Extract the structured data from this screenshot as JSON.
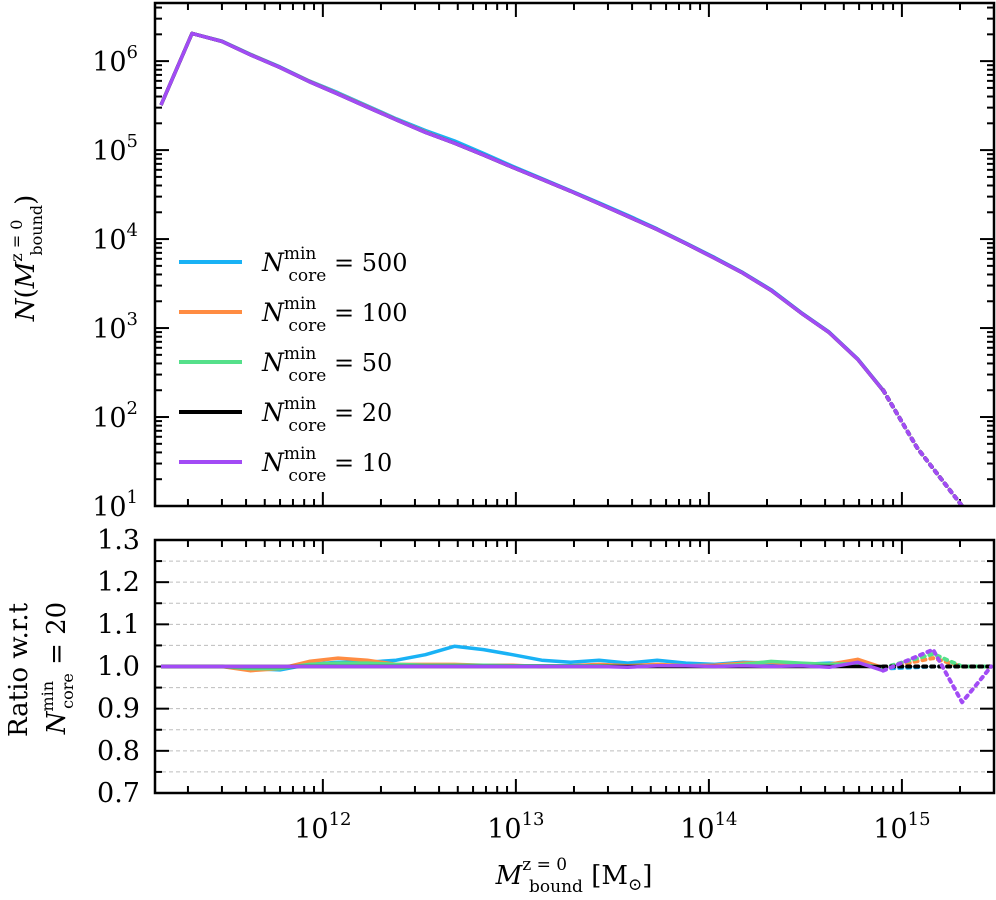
{
  "chart_data": [
    {
      "type": "line",
      "panel": "top",
      "xscale": "log",
      "yscale": "log",
      "xlim": [
        135000000000.0,
        3000000000000000.0
      ],
      "ylim": [
        10,
        4500000
      ],
      "ylabel": "N(M_bound^z=0)",
      "ytick_values": [
        10,
        100,
        1000,
        10000,
        100000,
        1000000
      ],
      "ytick_labels": [
        {
          "base": "10",
          "exp": "1"
        },
        {
          "base": "10",
          "exp": "2"
        },
        {
          "base": "10",
          "exp": "3"
        },
        {
          "base": "10",
          "exp": "4"
        },
        {
          "base": "10",
          "exp": "5"
        },
        {
          "base": "10",
          "exp": "6"
        }
      ],
      "legend_loc": "lower-left",
      "legend": [
        {
          "name": "N",
          "sup": "min",
          "sub": "core",
          "value": "= 500",
          "color": "#19b2f5"
        },
        {
          "name": "N",
          "sup": "min",
          "sub": "core",
          "value": "= 100",
          "color": "#ff8c42"
        },
        {
          "name": "N",
          "sup": "min",
          "sub": "core",
          "value": "= 50",
          "color": "#55e08a"
        },
        {
          "name": "N",
          "sup": "min",
          "sub": "core",
          "value": "= 20",
          "color": "#000000"
        },
        {
          "name": "N",
          "sup": "min",
          "sub": "core",
          "value": "= 10",
          "color": "#a24bf5"
        }
      ],
      "x": [
        145000000000.0,
        210000000000.0,
        300000000000.0,
        420000000000.0,
        600000000000.0,
        850000000000.0,
        1200000000000.0,
        1700000000000.0,
        2400000000000.0,
        3400000000000.0,
        4800000000000.0,
        6800000000000.0,
        9600000000000.0,
        13600000000000.0,
        19200000000000.0,
        27000000000000.0,
        38000000000000.0,
        54000000000000.0,
        76000000000000.0,
        107000000000000.0,
        150000000000000.0,
        210000000000000.0,
        300000000000000.0,
        420000000000000.0,
        590000000000000.0,
        800000000000000.0
      ],
      "series_solid_points": 26,
      "dotted_x": [
        800000000000000.0,
        1200000000000000.0,
        2050000000000000.0
      ],
      "dotted_y": [
        200,
        45,
        10
      ],
      "series": [
        {
          "name": "500",
          "color": "#19b2f5",
          "values": [
            320000,
            2050000,
            1680000,
            1200000,
            860000,
            600000,
            440000,
            315000,
            225000,
            166000,
            127000,
            92000,
            66000,
            48000,
            35000,
            25500,
            18500,
            13000,
            9000,
            6200,
            4200,
            2700,
            1500,
            900,
            450,
            200
          ]
        },
        {
          "name": "100",
          "color": "#ff8c42",
          "values": [
            320000,
            2050000,
            1670000,
            1190000,
            850000,
            595000,
            432000,
            308000,
            221000,
            160000,
            120000,
            88000,
            64000,
            47000,
            34500,
            25000,
            18000,
            12800,
            8900,
            6100,
            4150,
            2650,
            1480,
            890,
            445,
            198
          ]
        },
        {
          "name": "50",
          "color": "#55e08a",
          "values": [
            320000,
            2050000,
            1665000,
            1185000,
            850000,
            590000,
            428000,
            305000,
            220000,
            159000,
            120000,
            88000,
            64000,
            47000,
            34500,
            25000,
            18000,
            12800,
            8900,
            6100,
            4150,
            2650,
            1480,
            890,
            445,
            198
          ]
        },
        {
          "name": "20",
          "color": "#000000",
          "values": [
            320000,
            2050000,
            1665000,
            1180000,
            848000,
            588000,
            426000,
            304000,
            219000,
            158000,
            120000,
            88000,
            64000,
            47000,
            34500,
            25000,
            18000,
            12800,
            8900,
            6100,
            4150,
            2650,
            1480,
            890,
            445,
            198
          ]
        },
        {
          "name": "10",
          "color": "#a24bf5",
          "values": [
            320000,
            2050000,
            1665000,
            1180000,
            848000,
            588000,
            426000,
            304000,
            219000,
            158000,
            120000,
            88000,
            64000,
            47000,
            34500,
            25000,
            18000,
            12800,
            8900,
            6100,
            4150,
            2650,
            1480,
            890,
            445,
            198
          ]
        }
      ]
    },
    {
      "type": "line",
      "panel": "bottom",
      "xscale": "log",
      "xlim": [
        135000000000.0,
        3000000000000000.0
      ],
      "ylim": [
        0.7,
        1.3
      ],
      "grid": "horizontal dashed",
      "ylabel_line1": "Ratio w.r.t",
      "ylabel_line2": {
        "name": "N",
        "sup": "min",
        "sub": "core",
        "value": "= 20"
      },
      "ytick_values": [
        0.7,
        0.8,
        0.9,
        1.0,
        1.1,
        1.2,
        1.3
      ],
      "ytick_labels": [
        "0.7",
        "0.8",
        "0.9",
        "1.0",
        "1.1",
        "1.2",
        "1.3"
      ],
      "xtick_values": [
        1000000000000.0,
        10000000000000.0,
        100000000000000.0,
        1000000000000000.0
      ],
      "xtick_labels": [
        {
          "base": "10",
          "exp": "12"
        },
        {
          "base": "10",
          "exp": "13"
        },
        {
          "base": "10",
          "exp": "14"
        },
        {
          "base": "10",
          "exp": "15"
        }
      ],
      "xlabel": {
        "name": "M",
        "sup": "z = 0",
        "sub": "bound",
        "unit": "[M",
        "unit_sub": "⊙",
        "unit_close": "]"
      },
      "x": [
        145000000000.0,
        210000000000.0,
        300000000000.0,
        420000000000.0,
        600000000000.0,
        850000000000.0,
        1200000000000.0,
        1700000000000.0,
        2400000000000.0,
        3400000000000.0,
        4800000000000.0,
        6800000000000.0,
        9600000000000.0,
        13600000000000.0,
        19200000000000.0,
        27000000000000.0,
        38000000000000.0,
        54000000000000.0,
        76000000000000.0,
        107000000000000.0,
        150000000000000.0,
        210000000000000.0,
        300000000000000.0,
        420000000000000.0,
        590000000000000.0,
        800000000000000.0
      ],
      "dotted_x": [
        800000000000000.0,
        1450000000000000.0,
        2050000000000000.0,
        2900000000000000.0
      ],
      "series": [
        {
          "name": "500",
          "color": "#19b2f5",
          "values": [
            1.0,
            1.0,
            1.0,
            0.995,
            0.992,
            1.005,
            1.01,
            1.01,
            1.015,
            1.028,
            1.048,
            1.04,
            1.028,
            1.015,
            1.01,
            1.015,
            1.008,
            1.015,
            1.008,
            1.005,
            1.01,
            1.008,
            1.005,
            1.008,
            1.005,
            0.995
          ],
          "dotted": [
            0.995,
            1.0,
            1.0,
            1.0
          ]
        },
        {
          "name": "100",
          "color": "#ff8c42",
          "values": [
            1.0,
            1.0,
            1.0,
            0.99,
            0.995,
            1.012,
            1.02,
            1.015,
            1.005,
            1.005,
            1.005,
            1.003,
            1.003,
            1.0,
            1.002,
            1.005,
            1.002,
            1.005,
            1.002,
            1.003,
            1.008,
            1.01,
            1.005,
            1.005,
            1.017,
            0.997
          ],
          "dotted": [
            0.997,
            1.02,
            1.0,
            1.0
          ]
        },
        {
          "name": "50",
          "color": "#55e08a",
          "values": [
            1.0,
            1.0,
            1.0,
            0.995,
            0.995,
            1.005,
            1.008,
            1.008,
            1.005,
            1.003,
            1.003,
            1.003,
            1.002,
            1.002,
            1.002,
            1.002,
            1.0,
            1.002,
            1.002,
            1.0,
            1.005,
            1.012,
            1.008,
            1.005,
            1.007,
            0.997
          ],
          "dotted": [
            0.997,
            1.03,
            1.0,
            1.0
          ]
        },
        {
          "name": "20",
          "color": "#000000",
          "values": [
            1.0,
            1.0,
            1.0,
            1.0,
            1.0,
            1.0,
            1.0,
            1.0,
            1.0,
            1.0,
            1.0,
            1.0,
            1.0,
            1.0,
            1.0,
            1.0,
            1.0,
            1.0,
            1.0,
            1.0,
            1.0,
            1.0,
            1.0,
            1.0,
            1.0,
            1.0
          ],
          "dotted": [
            1.0,
            1.0,
            1.0,
            1.0
          ]
        },
        {
          "name": "10",
          "color": "#a24bf5",
          "values": [
            1.0,
            1.0,
            1.0,
            1.0,
            1.0,
            1.0,
            1.0,
            1.0,
            1.0,
            1.0,
            1.0,
            1.0,
            1.0,
            1.0,
            1.0,
            1.0,
            0.998,
            1.002,
            1.002,
            1.0,
            1.002,
            1.0,
            1.002,
            0.998,
            1.01,
            0.99
          ],
          "dotted": [
            0.99,
            1.04,
            0.915,
            1.0
          ]
        }
      ]
    }
  ]
}
